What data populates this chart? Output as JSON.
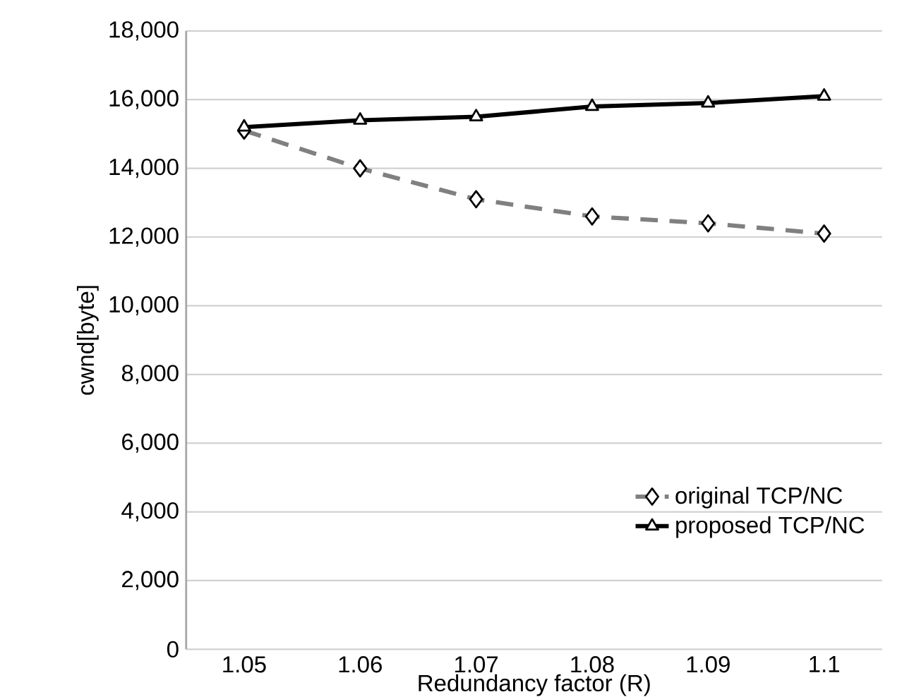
{
  "chart_data": {
    "type": "line",
    "xlabel": "Redundancy factor (R)",
    "ylabel": "cwnd[byte]",
    "categories": [
      "1.05",
      "1.06",
      "1.07",
      "1.08",
      "1.09",
      "1.1"
    ],
    "series": [
      {
        "name": "original TCP/NC",
        "color": "#808080",
        "line_style": "dashed",
        "marker": "diamond",
        "values": [
          15100,
          14000,
          13100,
          12600,
          12400,
          12100
        ]
      },
      {
        "name": "proposed TCP/NC",
        "color": "#000000",
        "line_style": "solid",
        "marker": "triangle",
        "values": [
          15200,
          15400,
          15500,
          15800,
          15900,
          16100
        ]
      }
    ],
    "ylim": [
      0,
      18000
    ],
    "yticks": [
      {
        "value": 0,
        "label": "0"
      },
      {
        "value": 2000,
        "label": "2,000"
      },
      {
        "value": 4000,
        "label": "4,000"
      },
      {
        "value": 6000,
        "label": "6,000"
      },
      {
        "value": 8000,
        "label": "8,000"
      },
      {
        "value": 10000,
        "label": "10,000"
      },
      {
        "value": 12000,
        "label": "12,000"
      },
      {
        "value": 14000,
        "label": "14,000"
      },
      {
        "value": 16000,
        "label": "16,000"
      },
      {
        "value": 18000,
        "label": "18,000"
      }
    ],
    "grid": "y",
    "legend": "bottom right"
  }
}
